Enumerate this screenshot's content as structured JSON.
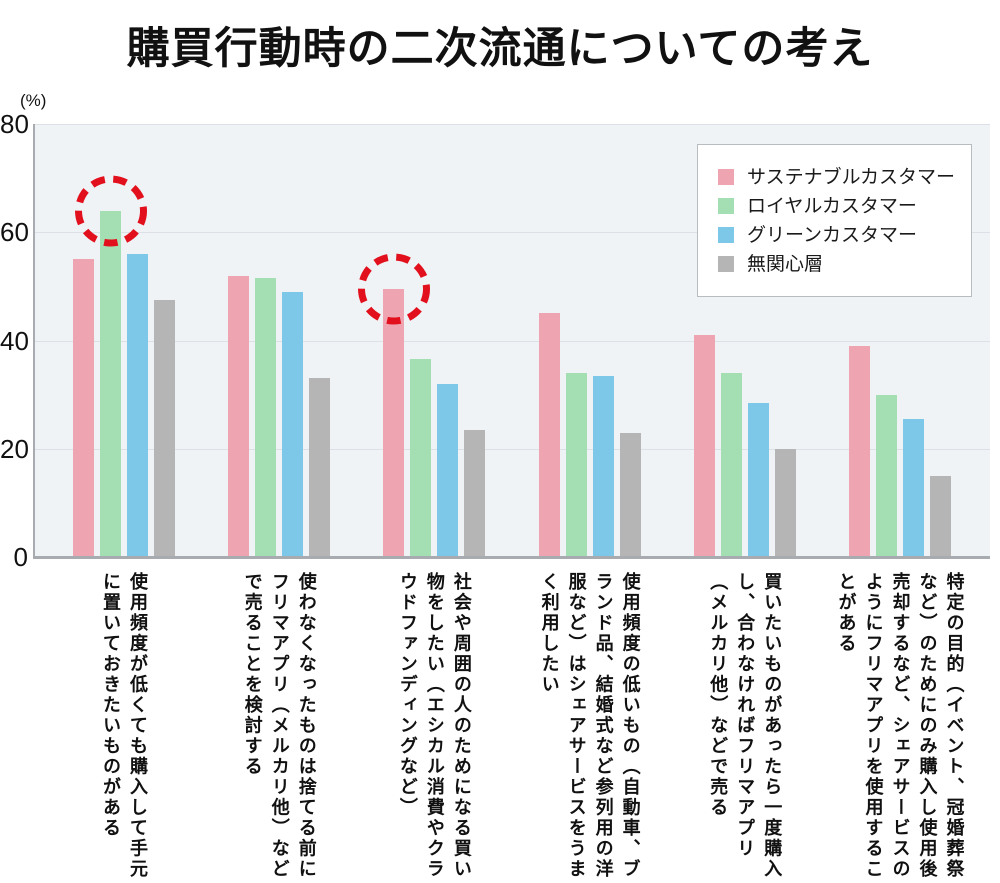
{
  "chart_data": {
    "type": "bar",
    "title": "購買行動時の二次流通についての考え",
    "unit_label": "(%)",
    "ylim": [
      0,
      80
    ],
    "yticks": [
      0,
      20,
      40,
      60,
      80
    ],
    "grid": true,
    "legend_position": "top-right-inside",
    "plot_background": "#eff3f6",
    "series": [
      {
        "name": "サステナブルカスタマー",
        "key": "sustainable-customer",
        "color": "#efa4b1",
        "values": [
          55,
          52,
          49.5,
          45,
          41,
          39
        ]
      },
      {
        "name": "ロイヤルカスタマー",
        "key": "loyal-customer",
        "color": "#a4dfb3",
        "values": [
          64,
          51.5,
          36.5,
          34,
          34,
          30
        ]
      },
      {
        "name": "グリーンカスタマー",
        "key": "green-customer",
        "color": "#7dc8e8",
        "values": [
          56,
          49,
          32,
          33.5,
          28.5,
          25.5
        ]
      },
      {
        "name": "無関心層",
        "key": "indifferent-segment",
        "color": "#b5b5b5",
        "values": [
          47.5,
          33,
          23.5,
          23,
          20,
          15
        ]
      }
    ],
    "categories": [
      "使用頻度が低くても購入して手元に置いておきたいものがある",
      "使わなくなったものは捨てる前にフリマアプリ（メルカリ他）などで売ることを検討する",
      "社会や周囲の人のためになる買い物をしたい（エシカル消費やクラウドファンディングなど）",
      "使用頻度の低いもの（自動車、ブランド品、結婚式など参列用の洋服など）はシェアサービスをうまく利用したい",
      "買いたいものがあったら一度購入し、合わなければフリマアプリ（メルカリ他）などで売る",
      "特定の目的（イベント、冠婚葬祭など）のためにのみ購入し使用後売却するなど、シェアサービスのようにフリマアプリを使用することがある"
    ],
    "annotations": [
      {
        "type": "dashed-circle",
        "color": "#e2101c",
        "category_index": 0,
        "series_index": 1
      },
      {
        "type": "dashed-circle",
        "color": "#e2101c",
        "category_index": 2,
        "series_index": 0
      }
    ]
  }
}
